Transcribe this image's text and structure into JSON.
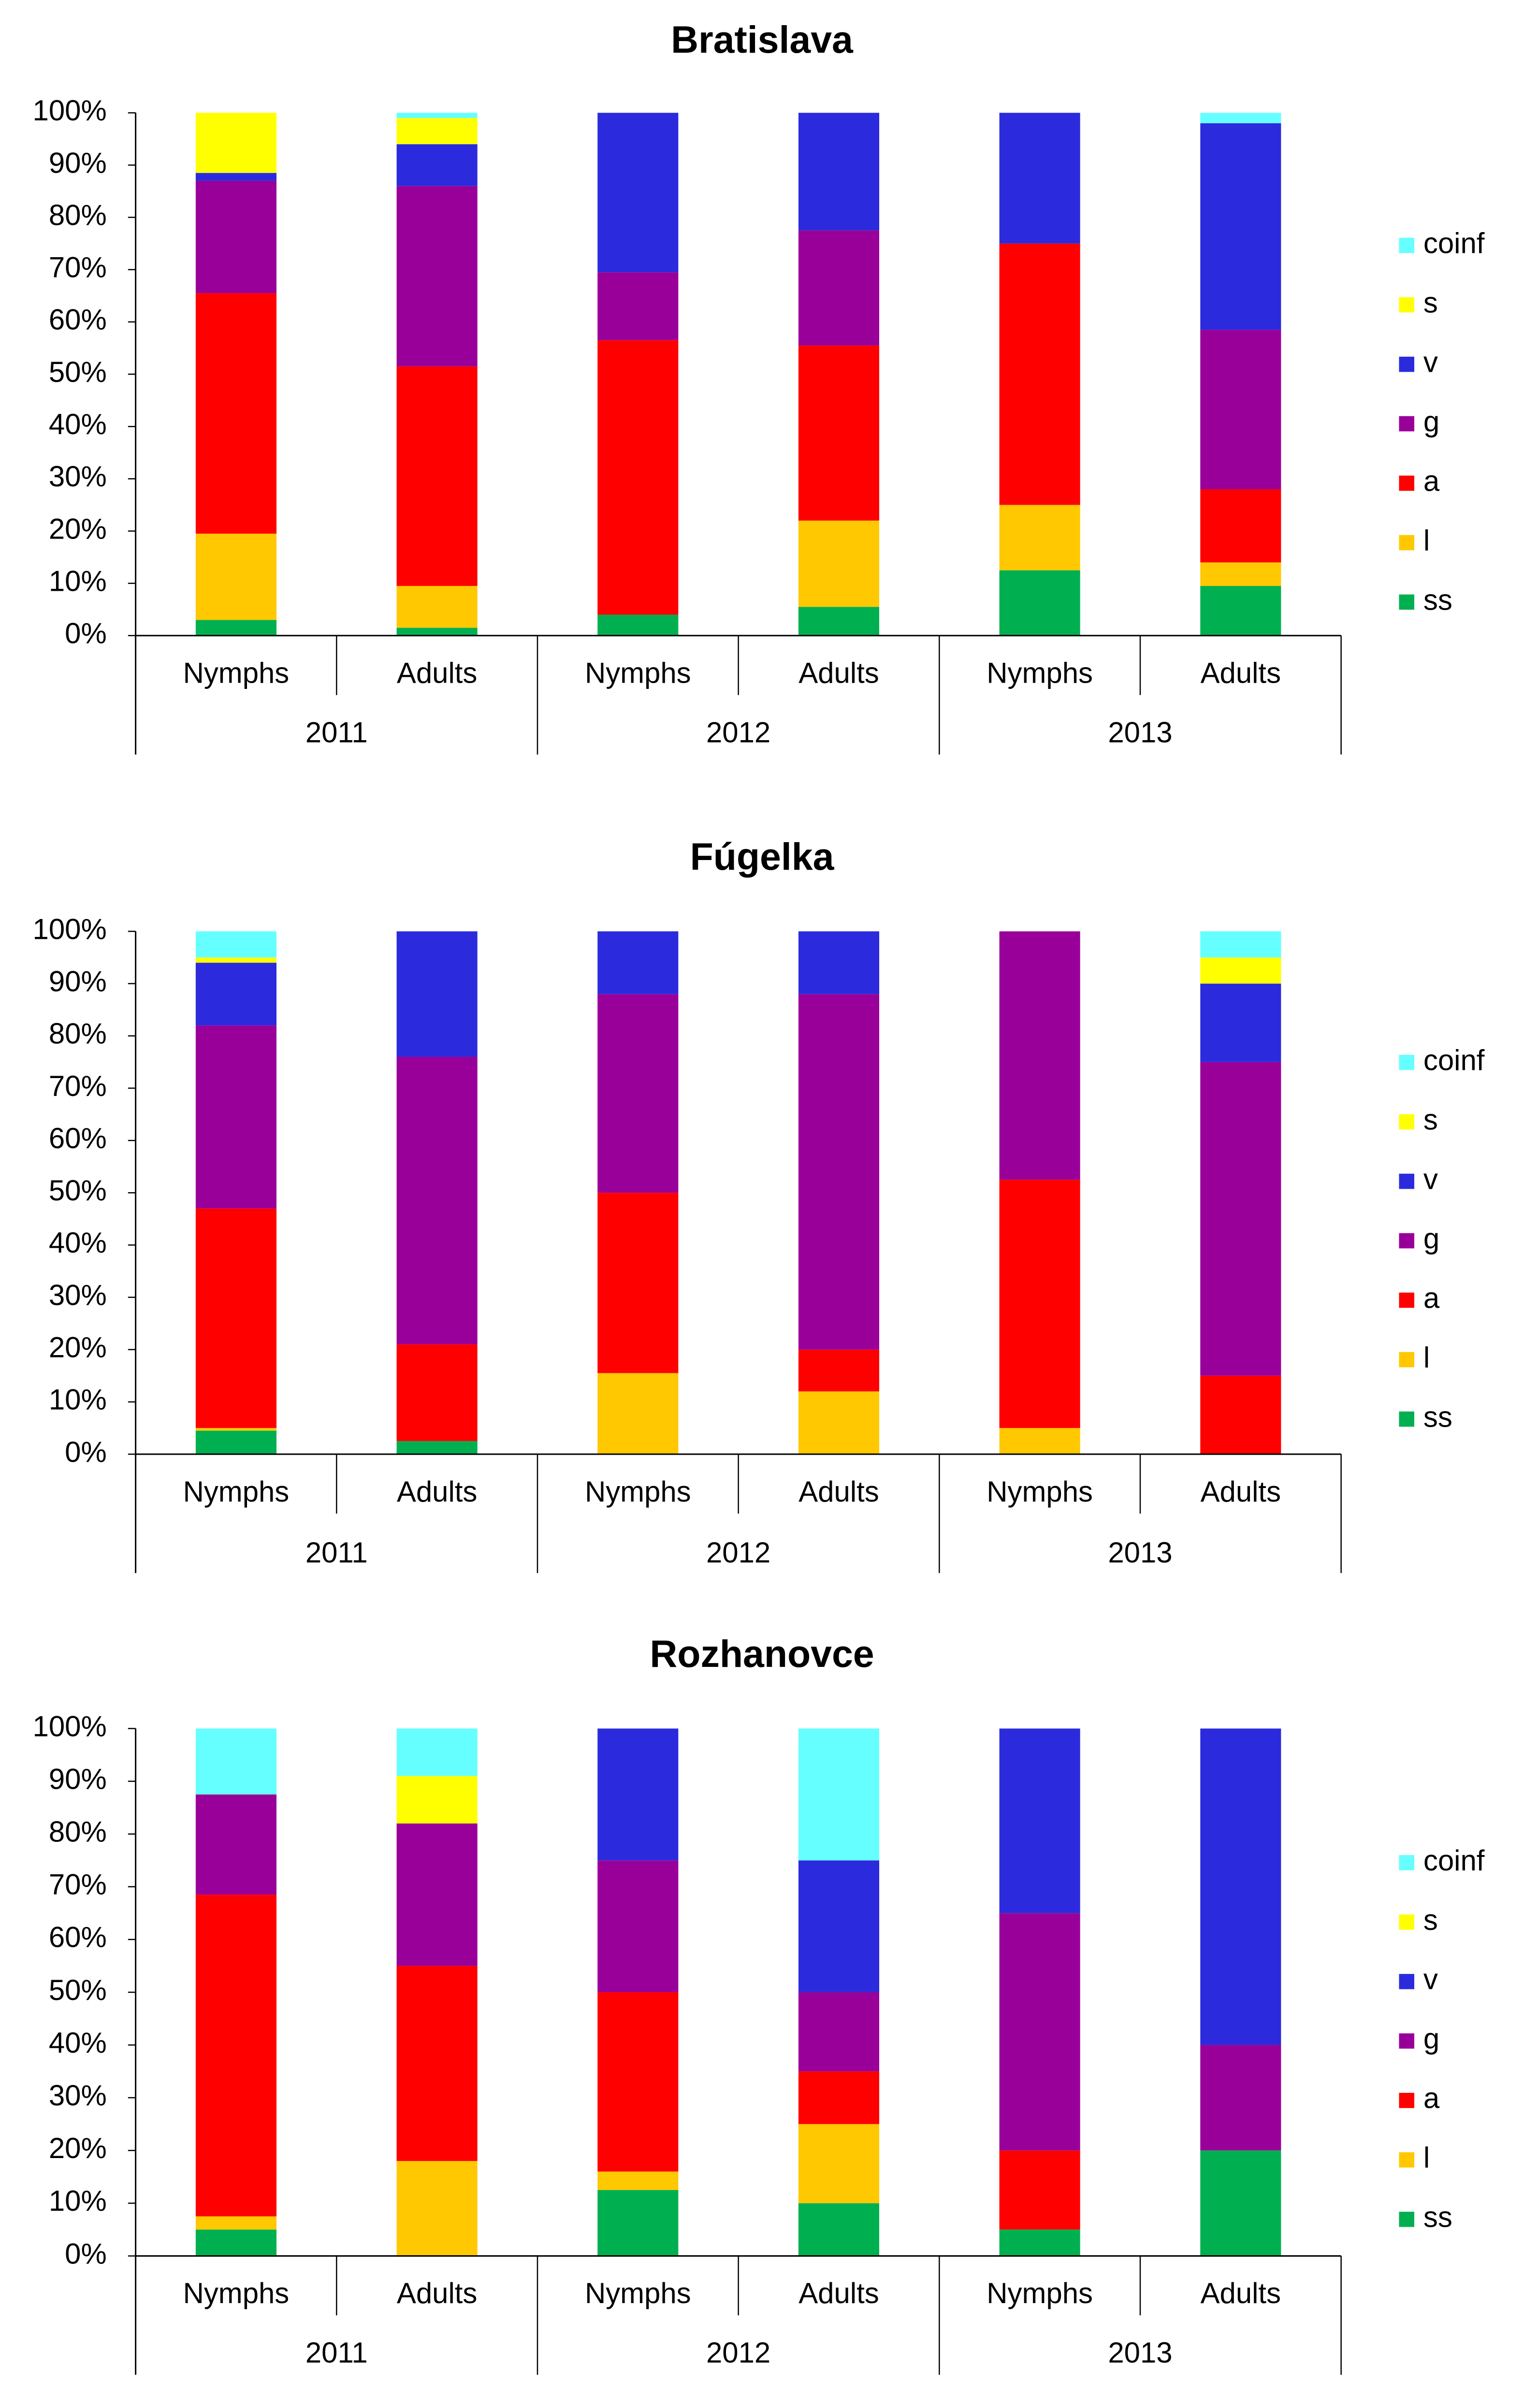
{
  "colors": {
    "coinf": "#66FFFF",
    "s": "#FFFF00",
    "v": "#2B2BDD",
    "g": "#990099",
    "a": "#FF0000",
    "l": "#FFC800",
    "ss": "#00B050"
  },
  "chart_data": [
    {
      "type": "bar",
      "stacked": true,
      "title": "Bratislava",
      "categories": [
        "Nymphs",
        "Adults",
        "Nymphs",
        "Adults",
        "Nymphs",
        "Adults"
      ],
      "groups": [
        "2011",
        "2012",
        "2013"
      ],
      "ylim": [
        0,
        100
      ],
      "yticks": [
        "0%",
        "10%",
        "20%",
        "30%",
        "40%",
        "50%",
        "60%",
        "70%",
        "80%",
        "90%",
        "100%"
      ],
      "legend": [
        "coinf",
        "s",
        "v",
        "g",
        "a",
        "l",
        "ss"
      ],
      "series": [
        {
          "name": "ss",
          "values": [
            3,
            1.5,
            4,
            5.5,
            12.5,
            9.5
          ]
        },
        {
          "name": "l",
          "values": [
            16.5,
            8,
            0,
            16.5,
            12.5,
            4.5
          ]
        },
        {
          "name": "a",
          "values": [
            46,
            42,
            52.5,
            33.5,
            50,
            14
          ]
        },
        {
          "name": "g",
          "values": [
            21.5,
            34.5,
            13,
            22,
            0,
            30.5
          ]
        },
        {
          "name": "v",
          "values": [
            1.5,
            8,
            30.5,
            22.5,
            25,
            39.5
          ]
        },
        {
          "name": "s",
          "values": [
            11.5,
            5,
            0,
            0,
            0,
            0
          ]
        },
        {
          "name": "coinf",
          "values": [
            0,
            1,
            0,
            0,
            0,
            2
          ]
        }
      ]
    },
    {
      "type": "bar",
      "stacked": true,
      "title": "Fúgelka",
      "categories": [
        "Nymphs",
        "Adults",
        "Nymphs",
        "Adults",
        "Nymphs",
        "Adults"
      ],
      "groups": [
        "2011",
        "2012",
        "2013"
      ],
      "ylim": [
        0,
        100
      ],
      "yticks": [
        "0%",
        "10%",
        "20%",
        "30%",
        "40%",
        "50%",
        "60%",
        "70%",
        "80%",
        "90%",
        "100%"
      ],
      "legend": [
        "coinf",
        "s",
        "v",
        "g",
        "a",
        "l",
        "ss"
      ],
      "series": [
        {
          "name": "ss",
          "values": [
            4.5,
            2.5,
            0,
            0,
            0,
            0
          ]
        },
        {
          "name": "l",
          "values": [
            0.5,
            0,
            15.5,
            12,
            5,
            0
          ]
        },
        {
          "name": "a",
          "values": [
            42,
            18.5,
            34.5,
            8,
            47.5,
            15
          ]
        },
        {
          "name": "g",
          "values": [
            35,
            55,
            38,
            68,
            47.5,
            60
          ]
        },
        {
          "name": "v",
          "values": [
            12,
            24,
            12,
            12,
            0,
            15
          ]
        },
        {
          "name": "s",
          "values": [
            1,
            0,
            0,
            0,
            0,
            5
          ]
        },
        {
          "name": "coinf",
          "values": [
            5,
            0,
            0,
            0,
            0,
            5
          ]
        }
      ]
    },
    {
      "type": "bar",
      "stacked": true,
      "title": "Rozhanovce",
      "categories": [
        "Nymphs",
        "Adults",
        "Nymphs",
        "Adults",
        "Nymphs",
        "Adults"
      ],
      "groups": [
        "2011",
        "2012",
        "2013"
      ],
      "ylim": [
        0,
        100
      ],
      "yticks": [
        "0%",
        "10%",
        "20%",
        "30%",
        "40%",
        "50%",
        "60%",
        "70%",
        "80%",
        "90%",
        "100%"
      ],
      "legend": [
        "coinf",
        "s",
        "v",
        "g",
        "a",
        "l",
        "ss"
      ],
      "series": [
        {
          "name": "ss",
          "values": [
            5,
            0,
            12.5,
            10,
            5,
            20
          ]
        },
        {
          "name": "l",
          "values": [
            2.5,
            18,
            3.5,
            15,
            0,
            0
          ]
        },
        {
          "name": "a",
          "values": [
            61,
            37,
            34,
            10,
            15,
            0
          ]
        },
        {
          "name": "g",
          "values": [
            19,
            27,
            25,
            15,
            45,
            20
          ]
        },
        {
          "name": "v",
          "values": [
            0,
            0,
            25,
            25,
            35,
            60
          ]
        },
        {
          "name": "s",
          "values": [
            0,
            9,
            0,
            0,
            0,
            0
          ]
        },
        {
          "name": "coinf",
          "values": [
            12.5,
            9,
            0,
            25,
            0,
            0
          ]
        }
      ]
    }
  ]
}
